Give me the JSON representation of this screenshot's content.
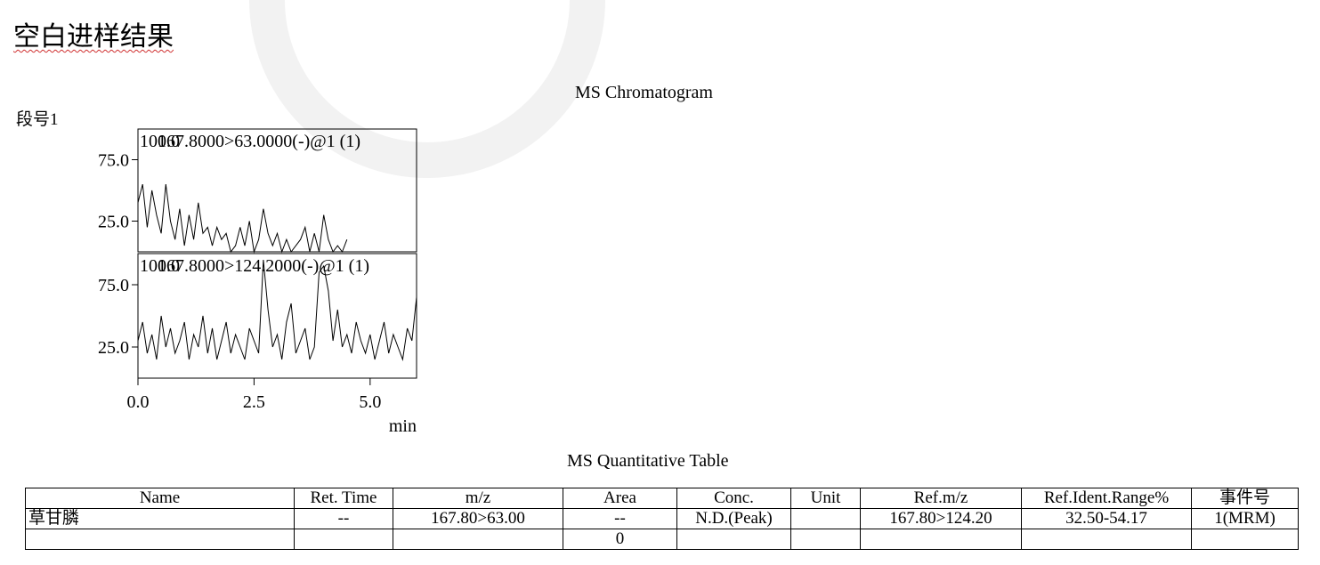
{
  "header": {
    "title": "空白进样结果"
  },
  "segment_label": "段号1",
  "chromatogram_title": "MS Chromatogram",
  "chart_data": [
    {
      "type": "line",
      "title": "167.8000>63.0000(-)@1 (1)",
      "color": "#000000",
      "x": [
        0,
        0.1,
        0.2,
        0.3,
        0.4,
        0.5,
        0.6,
        0.7,
        0.8,
        0.9,
        1.0,
        1.1,
        1.2,
        1.3,
        1.4,
        1.5,
        1.6,
        1.7,
        1.8,
        1.9,
        2.0,
        2.1,
        2.2,
        2.3,
        2.4,
        2.5,
        2.6,
        2.7,
        2.8,
        2.9,
        3.0,
        3.1,
        3.2,
        3.3,
        3.4,
        3.5,
        3.6,
        3.7,
        3.8,
        3.9,
        4.0,
        4.1,
        4.2,
        4.3,
        4.4,
        4.5
      ],
      "values": [
        40,
        55,
        20,
        50,
        30,
        15,
        55,
        25,
        10,
        35,
        5,
        30,
        10,
        40,
        15,
        20,
        5,
        20,
        10,
        15,
        0,
        5,
        20,
        5,
        25,
        0,
        10,
        35,
        15,
        5,
        15,
        0,
        10,
        0,
        5,
        10,
        20,
        0,
        15,
        0,
        30,
        10,
        0,
        5,
        0,
        10
      ],
      "xlim": [
        0,
        6
      ],
      "ylim": [
        0,
        100
      ],
      "yticks": [
        {
          "value": 25,
          "label": "25.0"
        },
        {
          "value": 75,
          "label": "75.0"
        },
        {
          "value": 100,
          "label": "100.0"
        }
      ]
    },
    {
      "type": "line",
      "title": "167.8000>124.2000(-)@1 (1)",
      "color": "#000000",
      "x": [
        0,
        0.1,
        0.2,
        0.3,
        0.4,
        0.5,
        0.6,
        0.7,
        0.8,
        0.9,
        1.0,
        1.1,
        1.2,
        1.3,
        1.4,
        1.5,
        1.6,
        1.7,
        1.8,
        1.9,
        2.0,
        2.1,
        2.2,
        2.3,
        2.4,
        2.5,
        2.6,
        2.7,
        2.8,
        2.9,
        3.0,
        3.1,
        3.2,
        3.3,
        3.4,
        3.5,
        3.6,
        3.7,
        3.8,
        3.9,
        4.0,
        4.1,
        4.2,
        4.3,
        4.4,
        4.5,
        4.6,
        4.7,
        4.8,
        4.9,
        5.0,
        5.1,
        5.2,
        5.3,
        5.4,
        5.5,
        5.6,
        5.7,
        5.8,
        5.9,
        6.0
      ],
      "values": [
        30,
        45,
        20,
        35,
        15,
        50,
        25,
        40,
        20,
        30,
        45,
        15,
        35,
        25,
        50,
        20,
        40,
        15,
        30,
        45,
        20,
        35,
        25,
        15,
        40,
        30,
        20,
        95,
        55,
        25,
        35,
        15,
        45,
        60,
        20,
        30,
        40,
        15,
        25,
        85,
        90,
        70,
        30,
        55,
        25,
        35,
        20,
        45,
        30,
        20,
        35,
        15,
        30,
        45,
        20,
        35,
        25,
        15,
        40,
        30,
        65
      ],
      "xlim": [
        0,
        6
      ],
      "ylim": [
        0,
        100
      ],
      "yticks": [
        {
          "value": 25,
          "label": "25.0"
        },
        {
          "value": 75,
          "label": "75.0"
        },
        {
          "value": 100,
          "label": "100.0"
        }
      ],
      "xticks": [
        {
          "value": 0,
          "label": "0.0"
        },
        {
          "value": 2.5,
          "label": "2.5"
        },
        {
          "value": 5,
          "label": "5.0"
        }
      ],
      "x_label": "min"
    }
  ],
  "table": {
    "title": "MS Quantitative Table",
    "columns": [
      "Name",
      "Ret. Time",
      "m/z",
      "Area",
      "Conc.",
      "Unit",
      "Ref.m/z",
      "Ref.Ident.Range%",
      "事件号"
    ],
    "rows": [
      [
        "草甘膦",
        "--",
        "167.80>63.00",
        "--",
        "N.D.(Peak)",
        null,
        "167.80>124.20",
        "32.50-54.17",
        "1(MRM)"
      ],
      [
        null,
        null,
        null,
        "0",
        null,
        null,
        null,
        null,
        null
      ]
    ]
  }
}
